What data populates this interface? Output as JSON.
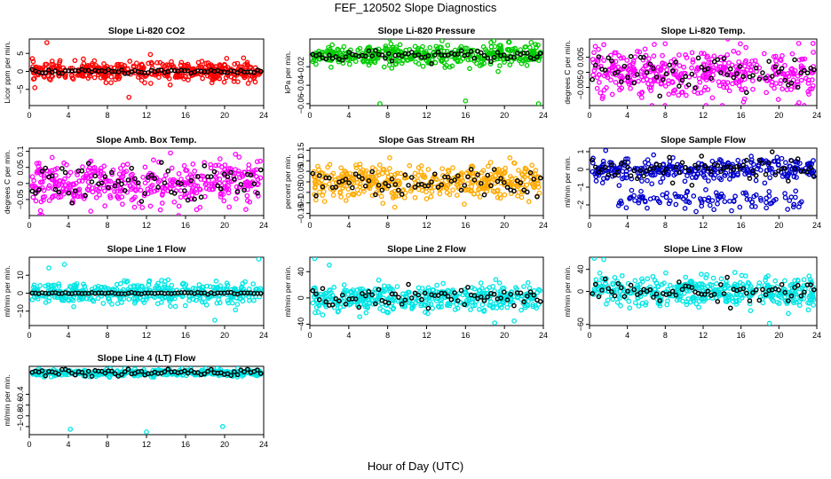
{
  "figure": {
    "title": "FEF_120502  Slope Diagnostics",
    "xlabel": "Hour of Day (UTC)"
  },
  "chart_data": [
    {
      "type": "scatter",
      "title": "Slope Li-820 CO2",
      "ylabel": "Licor ppm per min.",
      "xlim": [
        0,
        24
      ],
      "ylim": [
        -9.5,
        9
      ],
      "yticks": [
        -5,
        0,
        5
      ],
      "xticks": [
        0,
        4,
        8,
        12,
        16,
        20,
        24
      ],
      "color": "#ff0000",
      "center": 0,
      "spread": 1.3,
      "outliers": [
        [
          1.8,
          8
        ],
        [
          10.2,
          -7.2
        ],
        [
          12.4,
          4.7
        ]
      ],
      "black_spread": 0.3
    },
    {
      "type": "scatter",
      "title": "Slope Li-820 Pressure",
      "ylabel": "kPa per min.",
      "xlim": [
        0,
        24
      ],
      "ylim": [
        -0.062,
        0.01
      ],
      "yticks": [
        -0.06,
        -0.04,
        -0.02
      ],
      "xticks": [
        0,
        4,
        8,
        12,
        16,
        20,
        24
      ],
      "color": "#00cc00",
      "center": -0.008,
      "spread": 0.006,
      "outliers": [
        [
          7.2,
          -0.06
        ],
        [
          16,
          -0.057
        ],
        [
          23.5,
          -0.06
        ]
      ],
      "black_spread": 0.003
    },
    {
      "type": "scatter",
      "title": "Slope Li-820 Temp.",
      "ylabel": "degrees C per min.",
      "xlim": [
        0,
        24
      ],
      "ylim": [
        -0.011,
        0.011
      ],
      "yticks": [
        -0.005,
        0,
        0.005
      ],
      "xticks": [
        0,
        4,
        8,
        12,
        16,
        20,
        24
      ],
      "color": "#ff00ff",
      "center": 0,
      "spread": 0.004,
      "outliers": [],
      "black_spread": 0.003
    },
    {
      "type": "scatter",
      "title": "Slope Amb. Box Temp.",
      "ylabel": "degrees C per min.",
      "xlim": [
        0,
        24
      ],
      "ylim": [
        -0.1,
        0.11
      ],
      "yticks": [
        -0.05,
        0,
        0.05,
        0.1
      ],
      "xticks": [
        0,
        4,
        8,
        12,
        16,
        20,
        24
      ],
      "color": "#ff00ff",
      "center": 0,
      "spread": 0.035,
      "outliers": [],
      "black_spread": 0.025
    },
    {
      "type": "scatter",
      "title": "Slope Gas Stream RH",
      "ylabel": "percent per min.",
      "xlim": [
        0,
        24
      ],
      "ylim": [
        -0.16,
        0.16
      ],
      "yticks": [
        -0.15,
        -0.1,
        -0.05,
        0,
        0.05,
        0.1,
        0.15
      ],
      "xticks": [
        0,
        4,
        8,
        12,
        16,
        20,
        24
      ],
      "color": "#ffaa00",
      "center": 0,
      "spread": 0.04,
      "outliers": [],
      "black_spread": 0.035
    },
    {
      "type": "scatter",
      "title": "Slope Sample Flow",
      "ylabel": "ml/min per min.",
      "xlim": [
        0,
        24
      ],
      "ylim": [
        -2.6,
        1.2
      ],
      "yticks": [
        -2,
        -1,
        0,
        1
      ],
      "xticks": [
        0,
        4,
        8,
        12,
        16,
        20,
        24
      ],
      "color": "#0000cc",
      "center": 0,
      "spread": 0.3,
      "second_band": -1.7,
      "outliers": [],
      "black_spread": 0.3
    },
    {
      "type": "scatter",
      "title": "Slope Line 1 Flow",
      "ylabel": "ml/min per min.",
      "xlim": [
        0,
        24
      ],
      "ylim": [
        -18,
        20
      ],
      "yticks": [
        -10,
        0,
        10
      ],
      "xticks": [
        0,
        4,
        8,
        12,
        16,
        20,
        24
      ],
      "color": "#00e5e5",
      "center": 0,
      "spread": 3,
      "outliers": [
        [
          2,
          14
        ],
        [
          3.6,
          16
        ],
        [
          19,
          -15
        ],
        [
          23.5,
          19
        ]
      ],
      "black_spread": 0.2
    },
    {
      "type": "scatter",
      "title": "Slope Line 2 Flow",
      "ylabel": "ml/min per min.",
      "xlim": [
        0,
        24
      ],
      "ylim": [
        -42,
        62
      ],
      "yticks": [
        -40,
        0,
        40
      ],
      "xticks": [
        0,
        4,
        8,
        12,
        16,
        20,
        24
      ],
      "color": "#00e5e5",
      "center": 0,
      "spread": 10,
      "outliers": [
        [
          0.5,
          60
        ],
        [
          2,
          50
        ],
        [
          19,
          -38
        ],
        [
          21,
          -35
        ]
      ],
      "black_spread": 8
    },
    {
      "type": "scatter",
      "title": "Slope Line 3 Flow",
      "ylabel": "ml/min per min.",
      "xlim": [
        0,
        24
      ],
      "ylim": [
        -62,
        62
      ],
      "yticks": [
        -60,
        0,
        40
      ],
      "xticks": [
        0,
        4,
        8,
        12,
        16,
        20,
        24
      ],
      "color": "#00e5e5",
      "center": 0,
      "spread": 12,
      "outliers": [
        [
          0.5,
          60
        ],
        [
          1.5,
          58
        ],
        [
          19,
          -58
        ],
        [
          21,
          -40
        ]
      ],
      "black_spread": 10
    },
    {
      "type": "scatter",
      "title": "Slope Line 4 (LT) Flow",
      "ylabel": "ml/min per min.",
      "xlim": [
        0,
        24
      ],
      "ylim": [
        -1.15,
        0.12
      ],
      "yticks": [
        -1,
        -0.8,
        -0.6,
        -0.4
      ],
      "xticks": [
        0,
        4,
        8,
        12,
        16,
        20,
        24
      ],
      "color": "#00e5e5",
      "center": 0,
      "spread": 0.03,
      "outliers": [
        [
          4.2,
          -1.05
        ],
        [
          12,
          -1.1
        ],
        [
          19.8,
          -1.0
        ]
      ],
      "black_spread": 0.03
    }
  ]
}
